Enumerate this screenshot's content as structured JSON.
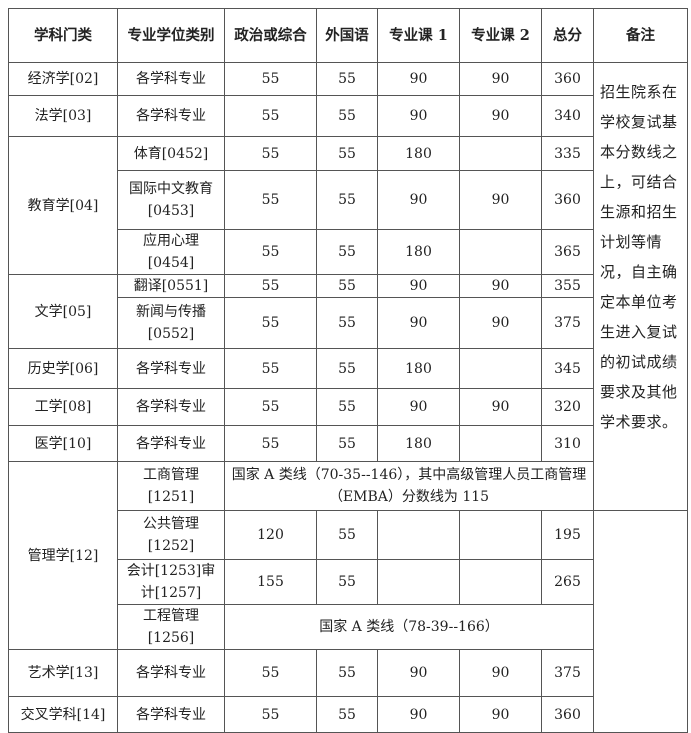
{
  "headers": [
    "学科门类",
    "专业学位类别",
    "政治或综合",
    "外国语",
    "专业课 1",
    "专业课 2",
    "总分",
    "备注"
  ],
  "note": "招生院系在学校复试基本分数线之上，可结合生源和招生计划等情况，自主确定本单位考生进入复试的初试成绩要求及其他学术要求。",
  "rows": {
    "jingji": {
      "discipline": "经济学[02]",
      "category": "各学科专业",
      "c1": "55",
      "c2": "55",
      "c3": "90",
      "c4": "90",
      "total": "360"
    },
    "fa": {
      "discipline": "法学[03]",
      "category": "各学科专业",
      "c1": "55",
      "c2": "55",
      "c3": "90",
      "c4": "90",
      "total": "340"
    },
    "jiaoyu": {
      "discipline": "教育学[04]"
    },
    "tiyu": {
      "category": "体育[0452]",
      "c1": "55",
      "c2": "55",
      "c3": "180",
      "total": "335"
    },
    "guoji": {
      "category": "国际中文教育[0453]",
      "c1": "55",
      "c2": "55",
      "c3": "90",
      "c4": "90",
      "total": "360"
    },
    "yingyong": {
      "category": "应用心理[0454]",
      "c1": "55",
      "c2": "55",
      "c3": "180",
      "total": "365"
    },
    "wen": {
      "discipline": "文学[05]"
    },
    "fanyi": {
      "category": "翻译[0551]",
      "c1": "55",
      "c2": "55",
      "c3": "90",
      "c4": "90",
      "total": "355"
    },
    "xinwen": {
      "category": "新闻与传播[0552]",
      "c1": "55",
      "c2": "55",
      "c3": "90",
      "c4": "90",
      "total": "375"
    },
    "lishi": {
      "discipline": "历史学[06]",
      "category": "各学科专业",
      "c1": "55",
      "c2": "55",
      "c3": "180",
      "total": "345"
    },
    "gong": {
      "discipline": "工学[08]",
      "category": "各学科专业",
      "c1": "55",
      "c2": "55",
      "c3": "90",
      "c4": "90",
      "total": "320"
    },
    "yi": {
      "discipline": "医学[10]",
      "category": "各学科专业",
      "c1": "55",
      "c2": "55",
      "c3": "180",
      "total": "310"
    },
    "guanli": {
      "discipline": "管理学[12]"
    },
    "gongshang": {
      "category": "工商管理[1251]",
      "merged": "国家 A 类线（70-35--146），其中高级管理人员工商管理（EMBA）分数线为 115"
    },
    "gonggong": {
      "category": "公共管理[1252]",
      "c1": "120",
      "c2": "55",
      "total": "195"
    },
    "kuaiji": {
      "category": "会计[1253]审计[1257]",
      "c1": "155",
      "c2": "55",
      "total": "265"
    },
    "gongcheng": {
      "category": "工程管理[1256]",
      "merged": "国家 A 类线（78-39--166）"
    },
    "yishu": {
      "discipline": "艺术学[13]",
      "category": "各学科专业",
      "c1": "55",
      "c2": "55",
      "c3": "90",
      "c4": "90",
      "total": "375"
    },
    "jiaocha": {
      "discipline": "交叉学科[14]",
      "category": "各学科专业",
      "c1": "55",
      "c2": "55",
      "c3": "90",
      "c4": "90",
      "total": "360"
    }
  }
}
